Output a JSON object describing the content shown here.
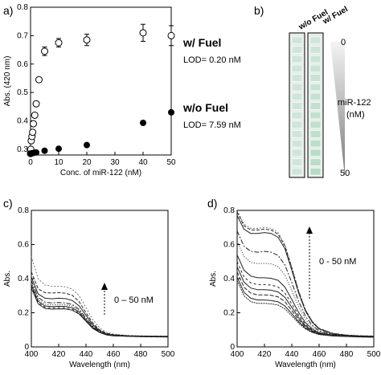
{
  "panels": {
    "a": "a)",
    "b": "b)",
    "c": "c)",
    "d": "d)"
  },
  "chart_data": [
    {
      "type": "scatter",
      "xlabel": "Conc. of miR-122 (nM)",
      "ylabel": "Abs. (420 nm)",
      "xlim": [
        0,
        50
      ],
      "ylim": [
        0.28,
        0.8
      ],
      "xticks": [
        "0",
        "10",
        "20",
        "30",
        "40",
        "50"
      ],
      "yticks": [
        "0.3",
        "0.4",
        "0.5",
        "0.6",
        "0.7",
        "0.8"
      ],
      "series": [
        {
          "name": "w/ Fuel",
          "marker": "open-circle",
          "x": [
            0,
            0.1,
            0.25,
            0.5,
            0.75,
            1,
            1.5,
            2,
            3,
            5,
            10,
            20,
            40,
            50
          ],
          "y": [
            0.285,
            0.3,
            0.33,
            0.345,
            0.36,
            0.39,
            0.42,
            0.46,
            0.545,
            0.645,
            0.675,
            0.685,
            0.71,
            0.7
          ],
          "err": [
            0.005,
            0.005,
            0.005,
            0.005,
            0.005,
            0.005,
            0.006,
            0.006,
            0.008,
            0.015,
            0.015,
            0.02,
            0.03,
            0.035
          ]
        },
        {
          "name": "w/o Fuel",
          "marker": "filled-circle",
          "x": [
            0,
            0.5,
            1,
            2,
            5,
            10,
            20,
            40,
            50
          ],
          "y": [
            0.285,
            0.286,
            0.287,
            0.289,
            0.295,
            0.302,
            0.315,
            0.393,
            0.43
          ],
          "err": [
            0,
            0,
            0,
            0,
            0,
            0,
            0,
            0,
            0
          ]
        }
      ],
      "annotations": [
        {
          "text": "w/  Fuel",
          "bold": true
        },
        {
          "text": "LOD= 0.20 nM"
        },
        {
          "text": "w/o Fuel",
          "bold": true
        },
        {
          "text": "LOD= 7.59 nM"
        }
      ]
    },
    {
      "type": "line",
      "xlabel": "Wavelength (nm)",
      "ylabel": "Abs.",
      "xlim": [
        400,
        500
      ],
      "ylim": [
        0,
        0.8
      ],
      "xticks": [
        "400",
        "420",
        "440",
        "460",
        "480",
        "500"
      ],
      "yticks": [
        "0",
        "0.2",
        "0.4",
        "0.6",
        "0.8"
      ],
      "x": [
        400,
        405,
        410,
        415,
        420,
        425,
        430,
        435,
        440,
        445,
        450,
        455,
        460,
        470,
        480,
        490,
        500
      ],
      "series": [
        {
          "y": [
            0.53,
            0.4,
            0.362,
            0.356,
            0.356,
            0.352,
            0.338,
            0.3,
            0.23,
            0.16,
            0.11,
            0.085,
            0.075,
            0.068,
            0.065,
            0.064,
            0.063
          ]
        },
        {
          "y": [
            0.44,
            0.34,
            0.318,
            0.316,
            0.318,
            0.315,
            0.302,
            0.265,
            0.2,
            0.14,
            0.1,
            0.08,
            0.072,
            0.066,
            0.064,
            0.063,
            0.062
          ]
        },
        {
          "y": [
            0.41,
            0.31,
            0.285,
            0.282,
            0.285,
            0.283,
            0.272,
            0.24,
            0.185,
            0.13,
            0.095,
            0.076,
            0.07,
            0.065,
            0.063,
            0.062,
            0.061
          ]
        },
        {
          "y": [
            0.39,
            0.29,
            0.262,
            0.258,
            0.26,
            0.258,
            0.248,
            0.22,
            0.17,
            0.122,
            0.09,
            0.074,
            0.068,
            0.064,
            0.062,
            0.061,
            0.06
          ]
        },
        {
          "y": [
            0.375,
            0.278,
            0.25,
            0.246,
            0.248,
            0.247,
            0.238,
            0.212,
            0.164,
            0.118,
            0.088,
            0.073,
            0.067,
            0.063,
            0.061,
            0.06,
            0.06
          ]
        },
        {
          "y": [
            0.365,
            0.268,
            0.24,
            0.236,
            0.238,
            0.237,
            0.229,
            0.204,
            0.158,
            0.114,
            0.086,
            0.072,
            0.066,
            0.063,
            0.061,
            0.06,
            0.059
          ]
        },
        {
          "y": [
            0.355,
            0.26,
            0.232,
            0.228,
            0.23,
            0.229,
            0.221,
            0.198,
            0.154,
            0.111,
            0.085,
            0.071,
            0.066,
            0.062,
            0.06,
            0.059,
            0.059
          ]
        },
        {
          "y": [
            0.345,
            0.252,
            0.225,
            0.221,
            0.223,
            0.222,
            0.215,
            0.192,
            0.15,
            0.108,
            0.084,
            0.07,
            0.065,
            0.062,
            0.06,
            0.059,
            0.058
          ]
        }
      ],
      "annotations": [
        {
          "text": "0 – 50 nM"
        }
      ]
    },
    {
      "type": "line",
      "xlabel": "Wavelength (nm)",
      "ylabel": "Abs.",
      "xlim": [
        400,
        500
      ],
      "ylim": [
        0,
        0.8
      ],
      "xticks": [
        "400",
        "420",
        "440",
        "460",
        "480",
        "500"
      ],
      "yticks": [
        "0",
        "0.2",
        "0.4",
        "0.6",
        "0.8"
      ],
      "x": [
        400,
        405,
        410,
        415,
        420,
        425,
        430,
        435,
        440,
        445,
        450,
        455,
        460,
        470,
        480,
        490,
        500
      ],
      "series": [
        {
          "y": [
            0.8,
            0.72,
            0.695,
            0.695,
            0.7,
            0.695,
            0.67,
            0.6,
            0.47,
            0.33,
            0.22,
            0.15,
            0.11,
            0.08,
            0.07,
            0.066,
            0.064
          ]
        },
        {
          "y": [
            0.79,
            0.71,
            0.685,
            0.685,
            0.69,
            0.685,
            0.66,
            0.59,
            0.462,
            0.325,
            0.216,
            0.148,
            0.108,
            0.079,
            0.069,
            0.065,
            0.063
          ]
        },
        {
          "y": [
            0.77,
            0.69,
            0.665,
            0.665,
            0.67,
            0.665,
            0.642,
            0.575,
            0.45,
            0.316,
            0.21,
            0.144,
            0.105,
            0.077,
            0.068,
            0.064,
            0.062
          ]
        },
        {
          "y": [
            0.68,
            0.59,
            0.56,
            0.555,
            0.56,
            0.555,
            0.536,
            0.48,
            0.377,
            0.268,
            0.18,
            0.126,
            0.095,
            0.073,
            0.066,
            0.063,
            0.061
          ]
        },
        {
          "y": [
            0.62,
            0.53,
            0.495,
            0.488,
            0.49,
            0.486,
            0.47,
            0.42,
            0.33,
            0.236,
            0.162,
            0.116,
            0.089,
            0.071,
            0.065,
            0.062,
            0.06
          ]
        },
        {
          "y": [
            0.54,
            0.45,
            0.415,
            0.405,
            0.405,
            0.402,
            0.39,
            0.35,
            0.278,
            0.202,
            0.142,
            0.105,
            0.083,
            0.069,
            0.064,
            0.061,
            0.059
          ]
        },
        {
          "y": [
            0.5,
            0.41,
            0.375,
            0.365,
            0.365,
            0.362,
            0.351,
            0.316,
            0.252,
            0.185,
            0.132,
            0.099,
            0.08,
            0.068,
            0.063,
            0.06,
            0.059
          ]
        },
        {
          "y": [
            0.47,
            0.38,
            0.345,
            0.335,
            0.335,
            0.332,
            0.322,
            0.29,
            0.232,
            0.172,
            0.124,
            0.095,
            0.078,
            0.067,
            0.062,
            0.06,
            0.058
          ]
        },
        {
          "y": [
            0.44,
            0.35,
            0.315,
            0.305,
            0.305,
            0.302,
            0.293,
            0.265,
            0.213,
            0.16,
            0.117,
            0.091,
            0.076,
            0.066,
            0.062,
            0.059,
            0.058
          ]
        },
        {
          "y": [
            0.41,
            0.32,
            0.285,
            0.275,
            0.275,
            0.272,
            0.264,
            0.24,
            0.195,
            0.148,
            0.11,
            0.087,
            0.074,
            0.065,
            0.061,
            0.059,
            0.057
          ]
        },
        {
          "y": [
            0.39,
            0.3,
            0.265,
            0.255,
            0.255,
            0.252,
            0.245,
            0.223,
            0.182,
            0.139,
            0.105,
            0.084,
            0.072,
            0.064,
            0.061,
            0.058,
            0.057
          ]
        }
      ],
      "annotations": [
        {
          "text": "0 - 50 nM"
        }
      ]
    }
  ],
  "strip": {
    "col1": "w/o Fuel",
    "col2": "w/ Fuel",
    "top_label": "0",
    "mid_label": "miR-122",
    "mid_unit": "(nM)",
    "bottom_label": "50",
    "cells": 15,
    "col1_color": "#cfe5d9",
    "col2_colors_from": "#cfe5d9",
    "col2_colors_to": "#b7dcc6"
  }
}
